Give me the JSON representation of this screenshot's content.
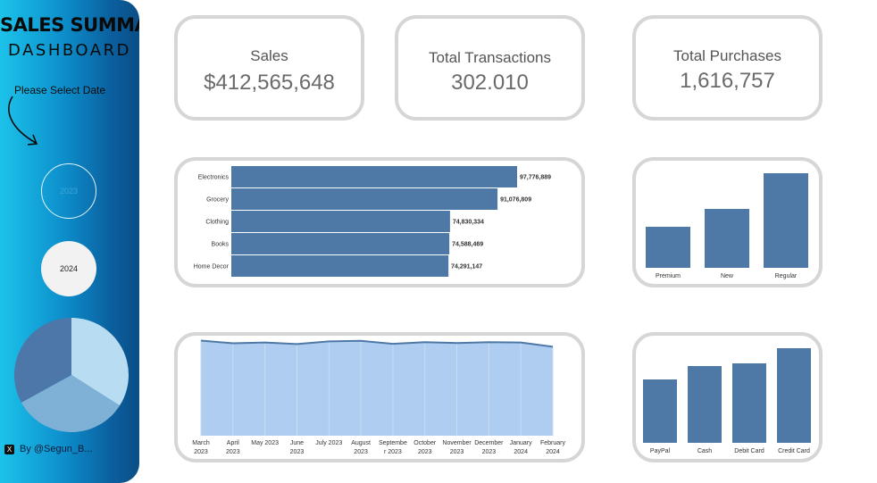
{
  "sidebar": {
    "title_line1": "SALES SUMMARY",
    "title_line2": "DASHBOARD",
    "select_prompt": "Please Select Date",
    "years": [
      "2023",
      "2024"
    ],
    "credit": "By @Segun_B..."
  },
  "kpis": {
    "sales_label": "Sales",
    "sales_value": "$412,565,648",
    "transactions_label": "Total Transactions",
    "transactions_value": "302.010",
    "purchases_label": "Total Purchases",
    "purchases_value": "1,616,757"
  },
  "chart_data": [
    {
      "type": "pie",
      "categories": [
        "",
        "",
        ""
      ],
      "values": [
        34,
        33,
        33
      ],
      "colors": [
        "#b8dcf2",
        "#7fb0d6",
        "#4c77a8"
      ]
    },
    {
      "type": "bar",
      "orientation": "horizontal",
      "categories": [
        "Electronics",
        "Grocery",
        "Clothing",
        "Books",
        "Home Decor"
      ],
      "values": [
        97776889,
        91076809,
        74830334,
        74588469,
        74291147
      ],
      "data_labels": [
        "97,776,889",
        "91,076,809",
        "74,830,334",
        "74,588,469",
        "74,291,147"
      ],
      "color": "#4e79a7"
    },
    {
      "type": "bar",
      "categories": [
        "Premium",
        "New",
        "Regular"
      ],
      "values": [
        46,
        66,
        106
      ],
      "color": "#4e79a7"
    },
    {
      "type": "area",
      "categories": [
        [
          "March",
          "2023"
        ],
        [
          "April",
          "2023"
        ],
        [
          "May 2023",
          ""
        ],
        [
          "June",
          "2023"
        ],
        [
          "July 2023",
          ""
        ],
        [
          "August",
          "2023"
        ],
        [
          "Septembe",
          "r 2023"
        ],
        [
          "October",
          "2023"
        ],
        [
          "November",
          "2023"
        ],
        [
          "December",
          "2023"
        ],
        [
          "January",
          "2024"
        ],
        [
          "February",
          "2024"
        ]
      ],
      "values": [
        35500,
        34500,
        34800,
        34200,
        35200,
        35400,
        34300,
        34900,
        34600,
        34900,
        34800,
        33200
      ],
      "ylim": [
        0,
        36000
      ],
      "fill": "#aecdf0",
      "line": "#4e79a7"
    },
    {
      "type": "bar",
      "categories": [
        "PayPal",
        "Cash",
        "Debit Card",
        "Credit Card"
      ],
      "values": [
        71,
        86,
        89,
        106
      ],
      "color": "#4e79a7"
    }
  ]
}
